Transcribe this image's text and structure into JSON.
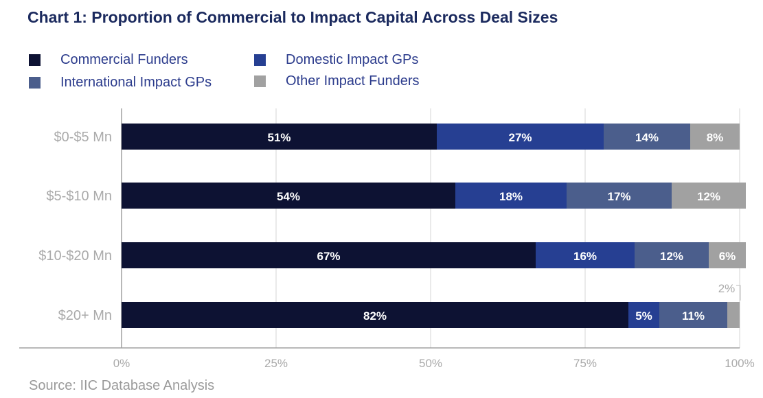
{
  "chart_data": {
    "type": "bar",
    "orientation": "horizontal",
    "stacked": true,
    "title": "Chart 1: Proportion of Commercial to Impact Capital Across Deal Sizes",
    "categories": [
      "$0-$5 Mn",
      "$5-$10 Mn",
      "$10-$20 Mn",
      "$20+ Mn"
    ],
    "series": [
      {
        "name": "Commercial Funders",
        "color": "#0d1233",
        "values": [
          51,
          54,
          67,
          82
        ],
        "labels": [
          "51%",
          "54%",
          "67%",
          "82%"
        ]
      },
      {
        "name": "Domestic Impact GPs",
        "color": "#263f92",
        "values": [
          27,
          18,
          16,
          5
        ],
        "labels": [
          "27%",
          "18%",
          "16%",
          "5%"
        ]
      },
      {
        "name": "International Impact GPs",
        "color": "#4b5e8c",
        "values": [
          14,
          17,
          12,
          11
        ],
        "labels": [
          "14%",
          "17%",
          "12%",
          "11%"
        ]
      },
      {
        "name": "Other Impact Funders",
        "color": "#a1a1a1",
        "values": [
          8,
          12,
          6,
          2
        ],
        "labels": [
          "8%",
          "12%",
          "6%",
          "2%"
        ]
      }
    ],
    "xlim": [
      0,
      100
    ],
    "xticks": [
      "0%",
      "25%",
      "50%",
      "75%",
      "100%"
    ],
    "grid": true,
    "legend": "top-left",
    "gridline_color": "#d4d4d4",
    "axis_label_color": "#aaaaaa"
  },
  "legend_labels": [
    "Commercial Funders",
    "Domestic Impact GPs",
    "International Impact GPs",
    "Other Impact Funders"
  ],
  "source": "Source: IIC Database Analysis"
}
